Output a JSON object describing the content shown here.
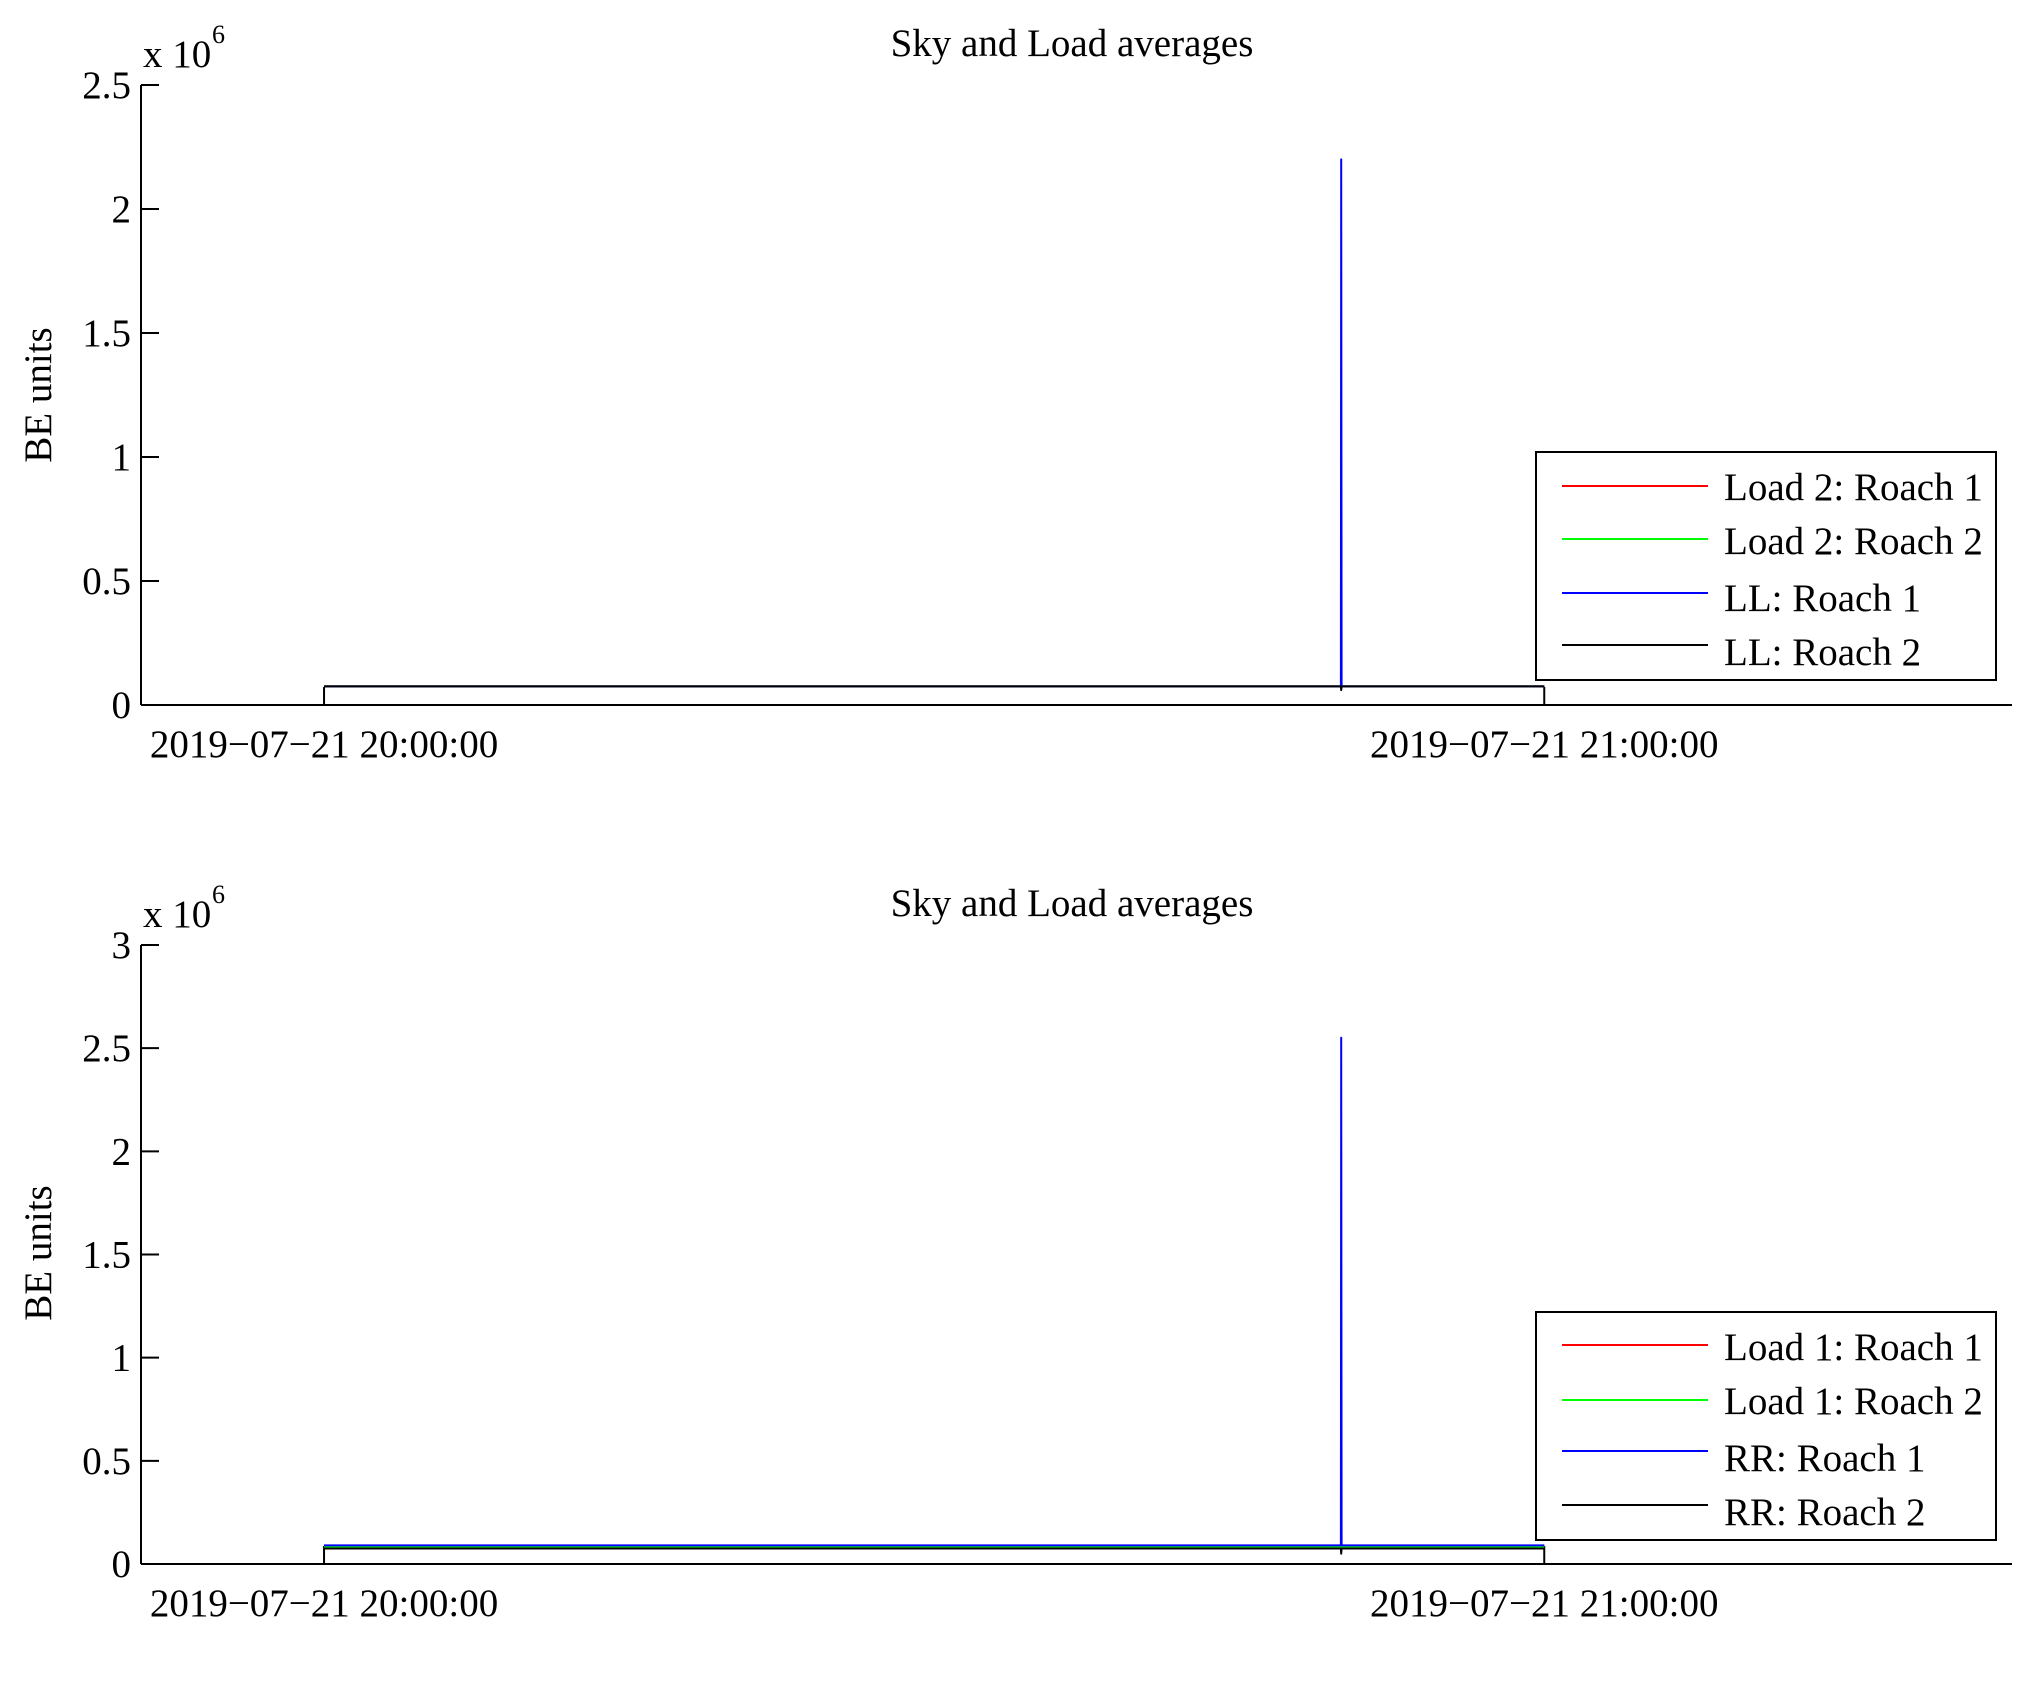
{
  "chart_data": [
    {
      "type": "line",
      "title": "Sky and Load averages",
      "xlabel": "",
      "ylabel": "BE units",
      "y_multiplier_label": "x 10",
      "y_multiplier_exponent": "6",
      "x_tick_labels": [
        "2019−07−21 20:00:00",
        "2019−07−21 21:00:00"
      ],
      "x_ticks": [
        "2019-07-21 20:00:00",
        "2019-07-21 21:00:00"
      ],
      "xlim": [
        "2019-07-21 19:51:00",
        "2019-07-21 21:23:00"
      ],
      "y_tick_labels": [
        "0",
        "0.5",
        "1",
        "1.5",
        "2",
        "2.5"
      ],
      "y_ticks": [
        0,
        0.5,
        1,
        1.5,
        2,
        2.5
      ],
      "ylim": [
        0,
        2.5
      ],
      "legend_position": "lower-right",
      "series": [
        {
          "name": "Load 2: Roach 1",
          "color": "#ff0000",
          "x": [
            "2019-07-21 20:00:00",
            "2019-07-21 20:50:00",
            "2019-07-21 21:00:00"
          ],
          "y": [
            0.075,
            0.075,
            0.075
          ]
        },
        {
          "name": "Load 2: Roach 2",
          "color": "#00ff00",
          "x": [
            "2019-07-21 20:00:00",
            "2019-07-21 20:50:00",
            "2019-07-21 21:00:00"
          ],
          "y": [
            0.075,
            0.075,
            0.075
          ]
        },
        {
          "name": "LL: Roach 1",
          "color": "#0000ff",
          "x": [
            "2019-07-21 20:00:00",
            "2019-07-21 20:50:00",
            "2019-07-21 20:50:01",
            "2019-07-21 20:50:02",
            "2019-07-21 21:00:00"
          ],
          "y": [
            0.075,
            0.075,
            2.2,
            0.075,
            0.075
          ]
        },
        {
          "name": "LL: Roach 2",
          "color": "#000000",
          "x": [
            "2019-07-21 20:00:00",
            "2019-07-21 20:50:00",
            "2019-07-21 20:50:01",
            "2019-07-21 20:50:02",
            "2019-07-21 21:00:00"
          ],
          "y": [
            0.075,
            0.075,
            0.06,
            0.075,
            0.075
          ]
        }
      ]
    },
    {
      "type": "line",
      "title": "Sky and Load averages",
      "xlabel": "",
      "ylabel": "BE units",
      "y_multiplier_label": "x 10",
      "y_multiplier_exponent": "6",
      "x_tick_labels": [
        "2019−07−21 20:00:00",
        "2019−07−21 21:00:00"
      ],
      "x_ticks": [
        "2019-07-21 20:00:00",
        "2019-07-21 21:00:00"
      ],
      "xlim": [
        "2019-07-21 19:51:00",
        "2019-07-21 21:23:00"
      ],
      "y_tick_labels": [
        "0",
        "0.5",
        "1",
        "1.5",
        "2",
        "2.5",
        "3"
      ],
      "y_ticks": [
        0,
        0.5,
        1,
        1.5,
        2,
        2.5,
        3
      ],
      "ylim": [
        0,
        3
      ],
      "legend_position": "lower-right",
      "series": [
        {
          "name": "Load 1: Roach 1",
          "color": "#ff0000",
          "x": [
            "2019-07-21 20:00:00",
            "2019-07-21 20:50:00",
            "2019-07-21 20:50:01",
            "2019-07-21 20:50:02",
            "2019-07-21 21:00:00"
          ],
          "y": [
            0.085,
            0.085,
            0.15,
            0.085,
            0.085
          ]
        },
        {
          "name": "Load 1: Roach 2",
          "color": "#00ff00",
          "x": [
            "2019-07-21 20:00:00",
            "2019-07-21 20:50:00",
            "2019-07-21 21:00:00"
          ],
          "y": [
            0.085,
            0.085,
            0.085
          ]
        },
        {
          "name": "RR: Roach 1",
          "color": "#0000ff",
          "x": [
            "2019-07-21 20:00:00",
            "2019-07-21 20:50:00",
            "2019-07-21 20:50:01",
            "2019-07-21 20:50:02",
            "2019-07-21 21:00:00"
          ],
          "y": [
            0.09,
            0.09,
            2.55,
            0.09,
            0.09
          ]
        },
        {
          "name": "RR: Roach 2",
          "color": "#000000",
          "x": [
            "2019-07-21 20:00:00",
            "2019-07-21 20:50:00",
            "2019-07-21 20:50:01",
            "2019-07-21 20:50:02",
            "2019-07-21 21:00:00"
          ],
          "y": [
            0.075,
            0.075,
            0.05,
            0.075,
            0.075
          ]
        }
      ]
    }
  ]
}
